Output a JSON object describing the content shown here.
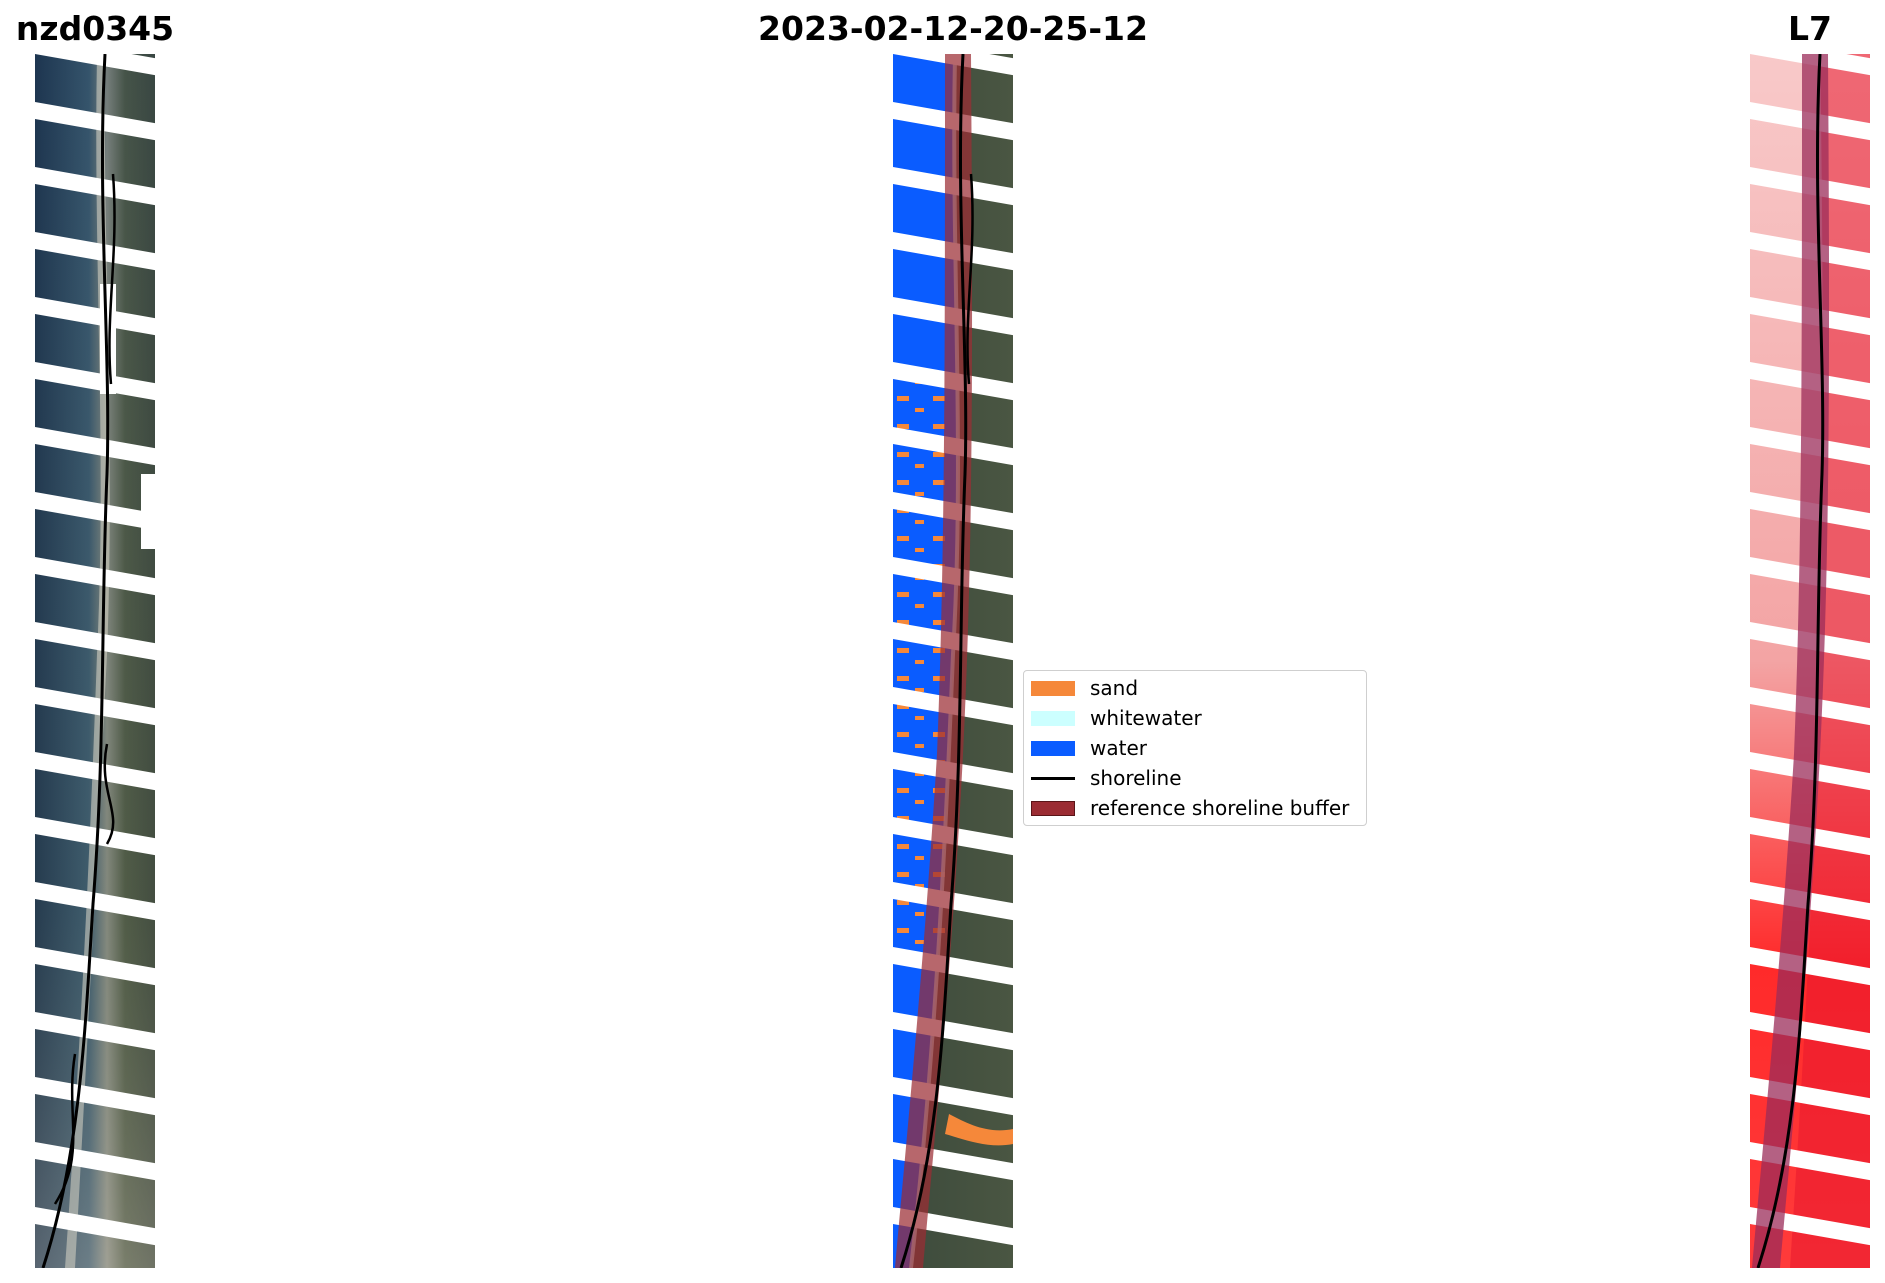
{
  "titles": {
    "site": "nzd0345",
    "date": "2023-02-12-20-25-12",
    "satellite": "L7"
  },
  "colors": {
    "sand": "#f5883a",
    "whitewater": "#ccffff",
    "water": "#0a5cff",
    "shoreline": "#000000",
    "buffer": "#9b2c33",
    "nodata_stripes": "#ffffff"
  },
  "legend": [
    {
      "label": "sand",
      "kind": "patch",
      "color": "#f5883a"
    },
    {
      "label": "whitewater",
      "kind": "patch",
      "color": "#ccffff"
    },
    {
      "label": "water",
      "kind": "patch",
      "color": "#0a5cff"
    },
    {
      "label": "shoreline",
      "kind": "line",
      "color": "#000000"
    },
    {
      "label": "reference shoreline buffer",
      "kind": "patch",
      "color": "#9b2c33"
    }
  ]
}
